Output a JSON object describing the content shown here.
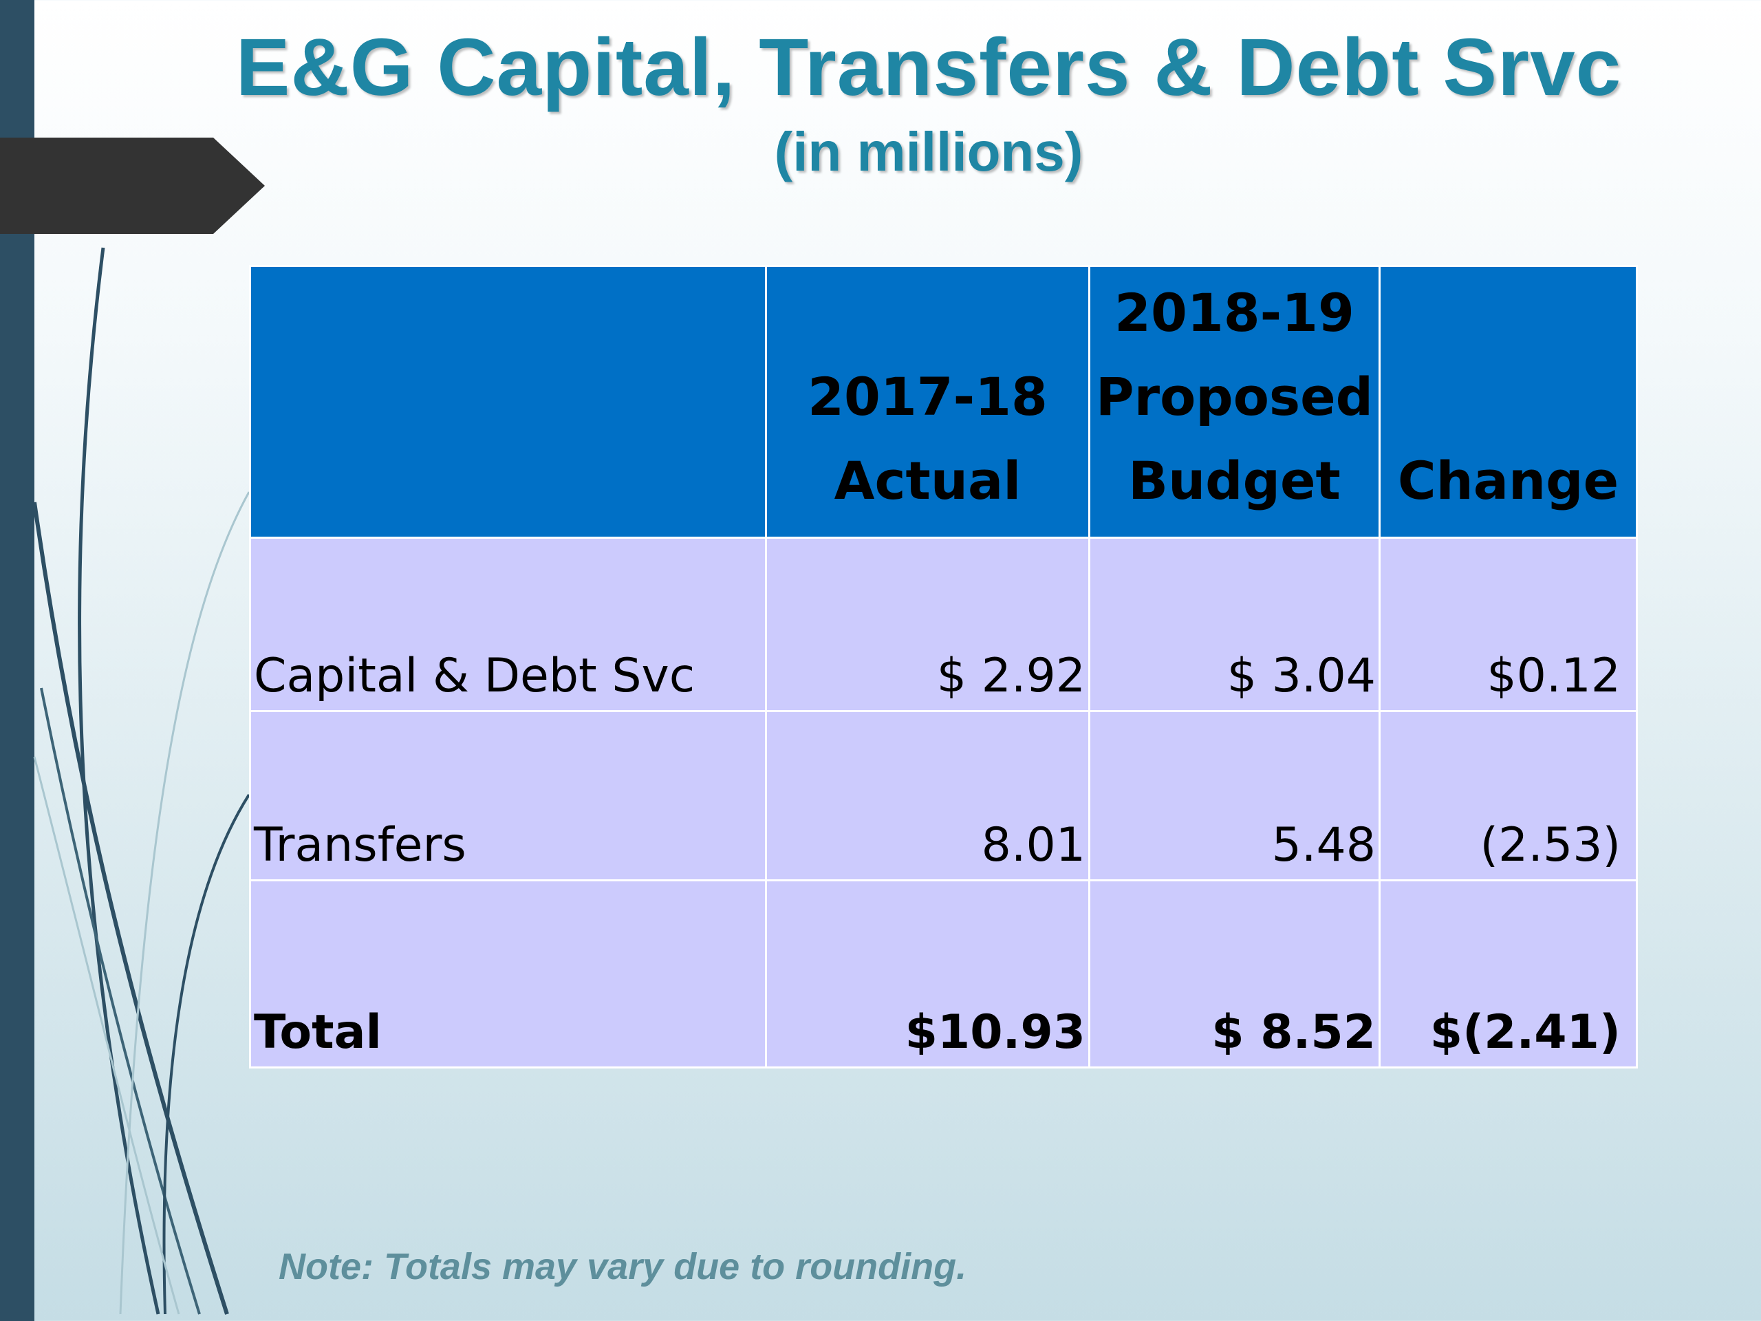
{
  "slide": {
    "title": "E&G Capital, Transfers & Debt Srvc",
    "subtitle": "(in millions)",
    "note": "Note: Totals may vary due to rounding."
  },
  "table": {
    "headers": [
      {
        "lines": [
          "",
          "",
          ""
        ]
      },
      {
        "lines": [
          "",
          "2017-18",
          "Actual"
        ]
      },
      {
        "lines": [
          "2018-19",
          "Proposed",
          "Budget"
        ]
      },
      {
        "lines": [
          "",
          "",
          "Change"
        ]
      }
    ],
    "rows": [
      {
        "label": "Capital & Debt Svc",
        "actual": "$ 2.92",
        "proposed": "$ 3.04",
        "change": "$0.12"
      },
      {
        "label": "Transfers",
        "actual": "8.01",
        "proposed": "5.48",
        "change": "(2.53)"
      },
      {
        "label": "Total",
        "actual": "$10.93",
        "proposed": "$ 8.52",
        "change": "$(2.41)"
      }
    ]
  },
  "colors": {
    "title": "#1f86a4",
    "header_bg": "#0070c6",
    "row_bg": "#cccbfd",
    "left_bar": "#2d4f64",
    "arrow_tab": "#333333",
    "note": "#5e8f9c"
  }
}
